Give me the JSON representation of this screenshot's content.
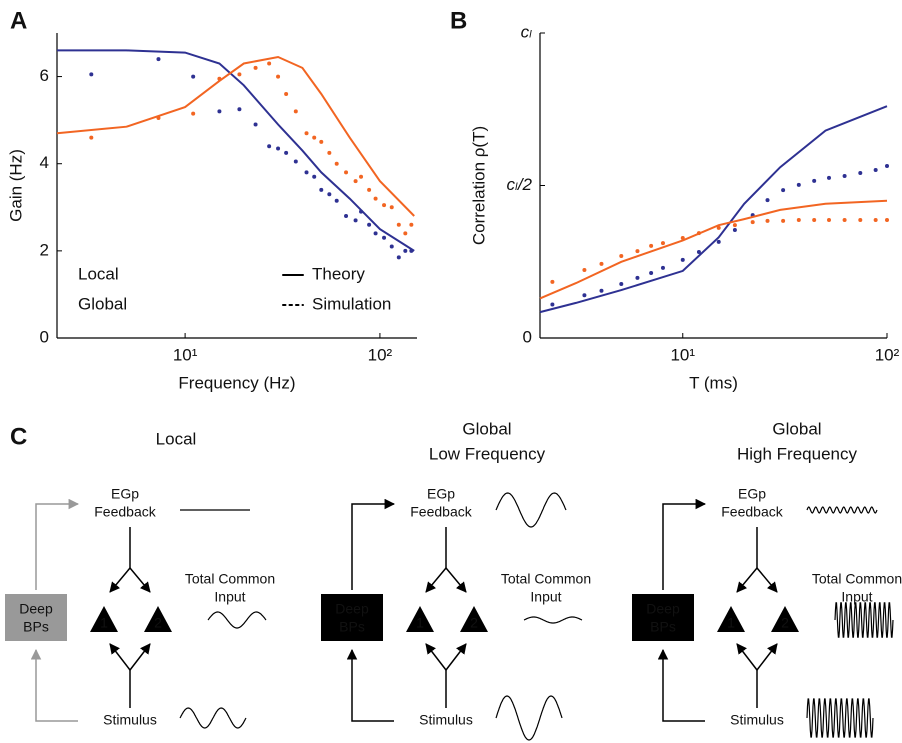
{
  "chart_data": [
    {
      "type": "line",
      "label": "A",
      "xlabel": "Frequency (Hz)",
      "ylabel": "Gain (Hz)",
      "xscale": "log",
      "xlim": [
        2.2,
        155
      ],
      "ylim": [
        0,
        7
      ],
      "xticks": [
        {
          "value": 10,
          "label": "10¹"
        },
        {
          "value": 100,
          "label": "10²"
        }
      ],
      "yticks": [
        0,
        2,
        4,
        6
      ],
      "theory_x": [
        2.2,
        5,
        10,
        15,
        20,
        30,
        40,
        50,
        70,
        100,
        150
      ],
      "sim_x": [
        3.3,
        7.3,
        11,
        15,
        19,
        23,
        27,
        30,
        33,
        37,
        42,
        46,
        50,
        55,
        60,
        67,
        75,
        80,
        88,
        95,
        105,
        115,
        125,
        135,
        145
      ],
      "series": [
        {
          "name": "Local",
          "color": "#2e3192",
          "theory": [
            6.6,
            6.6,
            6.55,
            6.3,
            5.8,
            4.9,
            4.3,
            3.8,
            3.2,
            2.5,
            2.0
          ],
          "simulation": [
            6.05,
            6.4,
            6.0,
            5.2,
            5.25,
            4.9,
            4.4,
            4.35,
            4.25,
            4.05,
            3.8,
            3.7,
            3.4,
            3.3,
            3.15,
            2.8,
            2.7,
            2.9,
            2.6,
            2.4,
            2.3,
            2.1,
            1.85,
            2.0,
            2.0
          ]
        },
        {
          "name": "Global",
          "color": "#f26522",
          "theory": [
            4.7,
            4.85,
            5.3,
            5.9,
            6.3,
            6.45,
            6.2,
            5.6,
            4.6,
            3.6,
            2.8
          ],
          "simulation": [
            4.6,
            5.05,
            5.15,
            5.95,
            6.05,
            6.2,
            6.3,
            6.0,
            5.6,
            5.2,
            4.7,
            4.6,
            4.5,
            4.25,
            4.0,
            3.8,
            3.6,
            3.7,
            3.4,
            3.2,
            3.05,
            3.0,
            2.6,
            2.4,
            2.6
          ]
        }
      ],
      "styles": [
        {
          "name": "Theory",
          "dash": "solid"
        },
        {
          "name": "Simulation",
          "dash": "dotted"
        }
      ]
    },
    {
      "type": "line",
      "label": "B",
      "xlabel": "T (ms)",
      "ylabel": "Correlation  ρ(T)",
      "xscale": "log",
      "xlim": [
        2,
        100
      ],
      "ylim": [
        0,
        1
      ],
      "xticks": [
        {
          "value": 10,
          "label": "10¹"
        },
        {
          "value": 100,
          "label": "10²"
        }
      ],
      "yticks": [
        0,
        {
          "value": 0.5,
          "label": "cₗ/2"
        },
        {
          "value": 1,
          "label": "cₗ"
        }
      ],
      "theory_x": [
        2,
        3,
        5,
        10,
        15,
        20,
        30,
        50,
        100
      ],
      "sim_x": [
        2.3,
        3.3,
        4,
        5,
        6,
        7,
        8,
        10,
        12,
        15,
        18,
        22,
        26,
        31,
        37,
        44,
        52,
        62,
        74,
        88,
        100
      ],
      "series": [
        {
          "name": "Local",
          "color": "#2e3192",
          "theory": [
            0.085,
            0.115,
            0.157,
            0.22,
            0.33,
            0.44,
            0.56,
            0.68,
            0.76
          ],
          "simulation": [
            0.11,
            0.14,
            0.155,
            0.177,
            0.197,
            0.213,
            0.23,
            0.256,
            0.282,
            0.315,
            0.354,
            0.403,
            0.452,
            0.485,
            0.502,
            0.515,
            0.525,
            0.531,
            0.541,
            0.551,
            0.564
          ]
        },
        {
          "name": "Global",
          "color": "#f26522",
          "theory": [
            0.13,
            0.18,
            0.25,
            0.32,
            0.37,
            0.39,
            0.42,
            0.44,
            0.45
          ],
          "simulation": [
            0.184,
            0.223,
            0.243,
            0.269,
            0.285,
            0.302,
            0.311,
            0.328,
            0.344,
            0.361,
            0.37,
            0.38,
            0.384,
            0.384,
            0.387,
            0.387,
            0.387,
            0.387,
            0.387,
            0.387,
            0.387
          ]
        }
      ]
    }
  ],
  "diagram": {
    "label": "C",
    "panels": [
      {
        "title": [
          "Local"
        ],
        "title_color": "#2e3192",
        "feedback": [
          "EGp",
          "Feedback"
        ],
        "common_input": [
          "Total Common",
          "Input"
        ],
        "source": [
          "Deep",
          "BPs"
        ],
        "neurons": [
          "1",
          "2"
        ],
        "stimulus": "Stimulus"
      },
      {
        "title": [
          "Global",
          "Low Frequency"
        ],
        "title_color": "#f26522",
        "feedback": [
          "EGp",
          "Feedback"
        ],
        "common_input": [
          "Total Common",
          "Input"
        ],
        "source": [
          "Deep",
          "BPs"
        ],
        "neurons": [
          "1",
          "2"
        ],
        "stimulus": "Stimulus"
      },
      {
        "title": [
          "Global",
          "High Frequency"
        ],
        "title_color": "#f26522",
        "feedback": [
          "EGp",
          "Feedback"
        ],
        "common_input": [
          "Total Common",
          "Input"
        ],
        "source": [
          "Deep",
          "BPs"
        ],
        "neurons": [
          "1",
          "2"
        ],
        "stimulus": "Stimulus"
      }
    ]
  }
}
